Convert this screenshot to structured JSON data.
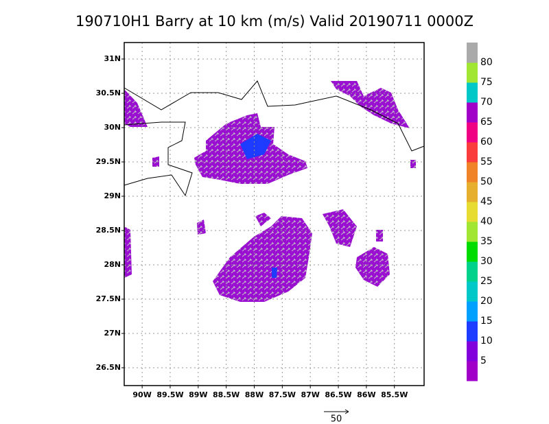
{
  "title": "190710H1 Barry at 10 km (m/s) Valid 20190711 0000Z",
  "map": {
    "xlim": [
      -90.32,
      -84.97
    ],
    "ylim": [
      26.24,
      31.24
    ],
    "xticks": [
      {
        "value": -90,
        "label": "90W"
      },
      {
        "value": -89.5,
        "label": "89.5W"
      },
      {
        "value": -89,
        "label": "89W"
      },
      {
        "value": -88.5,
        "label": "88.5W"
      },
      {
        "value": -88,
        "label": "88W"
      },
      {
        "value": -87.5,
        "label": "87.5W"
      },
      {
        "value": -87,
        "label": "87W"
      },
      {
        "value": -86.5,
        "label": "86.5W"
      },
      {
        "value": -86,
        "label": "86W"
      },
      {
        "value": -85.5,
        "label": "85.5W"
      }
    ],
    "yticks": [
      {
        "value": 26.5,
        "label": "26.5N"
      },
      {
        "value": 27,
        "label": "27N"
      },
      {
        "value": 27.5,
        "label": "27.5N"
      },
      {
        "value": 28,
        "label": "28N"
      },
      {
        "value": 28.5,
        "label": "28.5N"
      },
      {
        "value": 29,
        "label": "29N"
      },
      {
        "value": 29.5,
        "label": "29.5N"
      },
      {
        "value": 30,
        "label": "30N"
      },
      {
        "value": 30.5,
        "label": "30.5N"
      },
      {
        "value": 31,
        "label": "31N"
      }
    ]
  },
  "colorbar": {
    "levels": [
      5,
      10,
      15,
      20,
      25,
      30,
      35,
      40,
      45,
      50,
      55,
      60,
      65,
      70,
      75,
      80
    ],
    "colors": [
      "#a000c8",
      "#8200dc",
      "#1e3cff",
      "#00a0ff",
      "#00c8c8",
      "#00d28c",
      "#00dc00",
      "#a0e632",
      "#e6dc32",
      "#e6af2d",
      "#f08228",
      "#fa3c3c",
      "#f00082",
      "#a000c8",
      "#00c8c8",
      "#a0e632",
      "#aaaaaa"
    ]
  },
  "vector_key": {
    "label": "50"
  }
}
